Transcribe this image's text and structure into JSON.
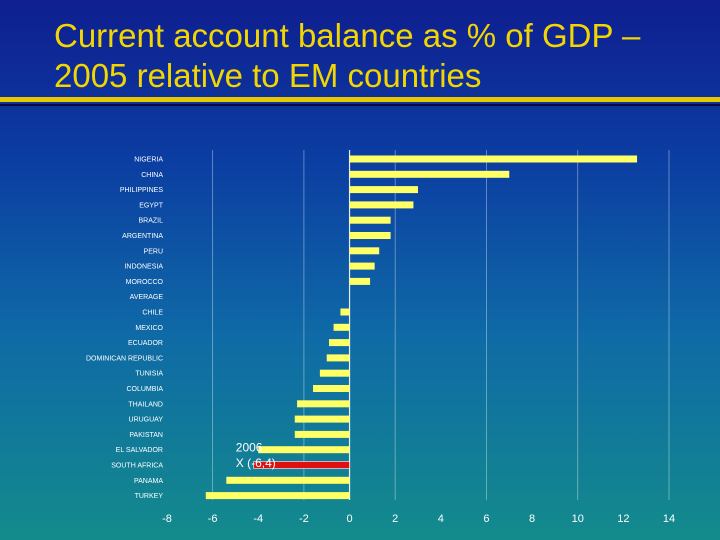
{
  "slide": {
    "title_line1": "Current account balance as % of GDP –",
    "title_line2": "2005 relative to EM countries"
  },
  "colors": {
    "bar": "#ffff66",
    "highlight_bar": "#e01010",
    "title": "#f3d600",
    "grid": "#ffffff"
  },
  "chart_data": {
    "type": "bar",
    "orientation": "horizontal",
    "title": "",
    "xlabel": "",
    "ylabel": "",
    "xlim": [
      -8,
      14
    ],
    "xticks": [
      -8,
      -6,
      -4,
      -2,
      0,
      2,
      4,
      6,
      8,
      10,
      12,
      14
    ],
    "grid": true,
    "categories": [
      "NIGERIA",
      "CHINA",
      "PHILIPPINES",
      "EGYPT",
      "BRAZIL",
      "ARGENTINA",
      "PERU",
      "INDONESIA",
      "MOROCCO",
      "AVERAGE",
      "CHILE",
      "MEXICO",
      "ECUADOR",
      "DOMINICAN REPUBLIC",
      "TUNISIA",
      "COLUMBIA",
      "THAILAND",
      "URUGUAY",
      "PAKISTAN",
      "EL SALVADOR",
      "SOUTH AFRICA",
      "PANAMA",
      "TURKEY"
    ],
    "values": [
      12.6,
      7.0,
      3.0,
      2.8,
      1.8,
      1.8,
      1.3,
      1.1,
      0.9,
      0.0,
      -0.4,
      -0.7,
      -0.9,
      -1.0,
      -1.3,
      -1.6,
      -2.3,
      -2.4,
      -2.4,
      -4.0,
      -4.2,
      -5.4,
      -6.3
    ],
    "highlight": {
      "category": "SOUTH AFRICA",
      "value": -4.2
    },
    "annotations": [
      {
        "text": "2006",
        "x": -6.3,
        "category": "EL SALVADOR"
      },
      {
        "text": "X (-6,4)",
        "x": -6.3,
        "category": "SOUTH AFRICA"
      }
    ]
  }
}
